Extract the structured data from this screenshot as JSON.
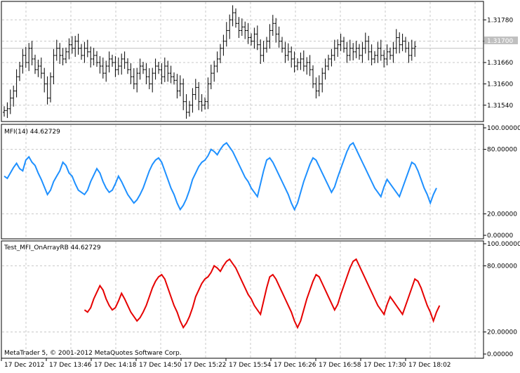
{
  "colors": {
    "background": "#ffffff",
    "frame": "#000000",
    "grid": "#c8c8c8",
    "price": "#000000",
    "mfi": "#1e90ff",
    "mfi_rb": "#e60000",
    "current_price_label": "#c0c0c0"
  },
  "copyright": "MetaTrader 5, © 2001-2012 MetaQuotes Software Corp.",
  "time_axis": [
    "17 Dec 2012",
    "17 Dec 13:46",
    "17 Dec 14:18",
    "17 Dec 14:50",
    "17 Dec 15:22",
    "17 Dec 15:54",
    "17 Dec 16:26",
    "17 Dec 16:58",
    "17 Dec 17:30",
    "17 Dec 18:02"
  ],
  "chart_data": [
    {
      "id": "price",
      "type": "bar",
      "title": "",
      "ylim": [
        1.315,
        1.3182
      ],
      "y_ticks": [
        "1.31780",
        "1.31720",
        "1.31660",
        "1.31600",
        "1.31540"
      ],
      "current_price": "1.31700",
      "series": [
        {
          "values": [
            1.31525,
            1.3153,
            1.3156,
            1.3158,
            1.3162,
            1.3165,
            1.3168,
            1.3166,
            1.317,
            1.3167,
            1.3164,
            1.3165,
            1.3163,
            1.316,
            1.3156,
            1.3162,
            1.3168,
            1.317,
            1.3168,
            1.3167,
            1.3169,
            1.3171,
            1.317,
            1.3172,
            1.317,
            1.3168,
            1.317,
            1.3169,
            1.3167,
            1.3168,
            1.3166,
            1.3165,
            1.3163,
            1.3165,
            1.3167,
            1.3166,
            1.3164,
            1.3165,
            1.3167,
            1.3166,
            1.3164,
            1.3162,
            1.316,
            1.3163,
            1.3165,
            1.3164,
            1.3162,
            1.316,
            1.3163,
            1.3165,
            1.3164,
            1.3162,
            1.3165,
            1.3163,
            1.3162,
            1.3161,
            1.3158,
            1.316,
            1.3155,
            1.3152,
            1.3154,
            1.3157,
            1.3159,
            1.3155,
            1.3154,
            1.3155,
            1.316,
            1.3163,
            1.3165,
            1.3167,
            1.317,
            1.3172,
            1.3175,
            1.3178,
            1.318,
            1.3177,
            1.3175,
            1.3176,
            1.3175,
            1.3173,
            1.3172,
            1.3174,
            1.3171,
            1.3168,
            1.317,
            1.3172,
            1.3175,
            1.3177,
            1.3174,
            1.3172,
            1.317,
            1.3168,
            1.3169,
            1.3167,
            1.3165,
            1.3166,
            1.3167,
            1.3165,
            1.3166,
            1.3164,
            1.316,
            1.3158,
            1.316,
            1.3163,
            1.3165,
            1.3167,
            1.3168,
            1.317,
            1.3171,
            1.3172,
            1.317,
            1.3168,
            1.317,
            1.3169,
            1.317,
            1.3168,
            1.317,
            1.3172,
            1.3169,
            1.3167,
            1.3168,
            1.317,
            1.3168,
            1.3167,
            1.3169,
            1.3168,
            1.317,
            1.3173,
            1.3171,
            1.3172,
            1.317,
            1.3168,
            1.317,
            1.31705
          ]
        }
      ]
    },
    {
      "id": "mfi",
      "type": "line",
      "title": "MFI(14) 44.62729",
      "ylim": [
        0,
        100
      ],
      "y_ticks": [
        "100.00000",
        "80.00000",
        "20.00000",
        "0.00000"
      ],
      "y_tick_values": [
        100,
        80,
        20,
        0
      ],
      "series": [
        {
          "values": [
            55,
            53,
            58,
            63,
            67,
            62,
            60,
            70,
            73,
            68,
            65,
            58,
            52,
            45,
            38,
            42,
            50,
            55,
            60,
            68,
            65,
            58,
            55,
            48,
            42,
            40,
            38,
            42,
            50,
            56,
            62,
            58,
            50,
            44,
            40,
            42,
            48,
            55,
            50,
            44,
            38,
            34,
            30,
            33,
            38,
            44,
            52,
            60,
            66,
            70,
            72,
            68,
            60,
            52,
            44,
            38,
            30,
            24,
            28,
            34,
            42,
            52,
            58,
            64,
            68,
            70,
            74,
            80,
            78,
            75,
            80,
            84,
            86,
            82,
            78,
            72,
            66,
            60,
            54,
            50,
            44,
            40,
            36,
            48,
            60,
            70,
            72,
            68,
            62,
            56,
            50,
            44,
            38,
            30,
            24,
            30,
            40,
            50,
            58,
            66,
            72,
            70,
            64,
            58,
            52,
            46,
            40,
            45,
            54,
            62,
            70,
            78,
            84,
            86,
            80,
            74,
            68,
            62,
            56,
            50,
            44,
            40,
            36,
            45,
            52,
            48,
            44,
            40,
            36,
            44,
            52,
            60,
            68,
            66,
            60,
            52,
            44,
            38,
            30,
            38,
            44
          ]
        }
      ]
    },
    {
      "id": "mfi_rb",
      "type": "line",
      "title": "Test_MFI_OnArrayRB 44.62729",
      "ylim": [
        0,
        100
      ],
      "y_ticks": [
        "100.00000",
        "80.00000",
        "20.00000",
        "0.00000"
      ],
      "y_tick_values": [
        100,
        80,
        20,
        0
      ],
      "x_start_index": 26,
      "series": [
        {
          "values": [
            40,
            38,
            42,
            50,
            56,
            62,
            58,
            50,
            44,
            40,
            42,
            48,
            55,
            50,
            44,
            38,
            34,
            30,
            33,
            38,
            44,
            52,
            60,
            66,
            70,
            72,
            68,
            60,
            52,
            44,
            38,
            30,
            24,
            28,
            34,
            42,
            52,
            58,
            64,
            68,
            70,
            74,
            80,
            78,
            75,
            80,
            84,
            86,
            82,
            78,
            72,
            66,
            60,
            54,
            50,
            44,
            40,
            36,
            48,
            60,
            70,
            72,
            68,
            62,
            56,
            50,
            44,
            38,
            30,
            24,
            30,
            40,
            50,
            58,
            66,
            72,
            70,
            64,
            58,
            52,
            46,
            40,
            45,
            54,
            62,
            70,
            78,
            84,
            86,
            80,
            74,
            68,
            62,
            56,
            50,
            44,
            40,
            36,
            45,
            52,
            48,
            44,
            40,
            36,
            44,
            52,
            60,
            68,
            66,
            60,
            52,
            44,
            38,
            30,
            38,
            44
          ]
        }
      ]
    }
  ]
}
